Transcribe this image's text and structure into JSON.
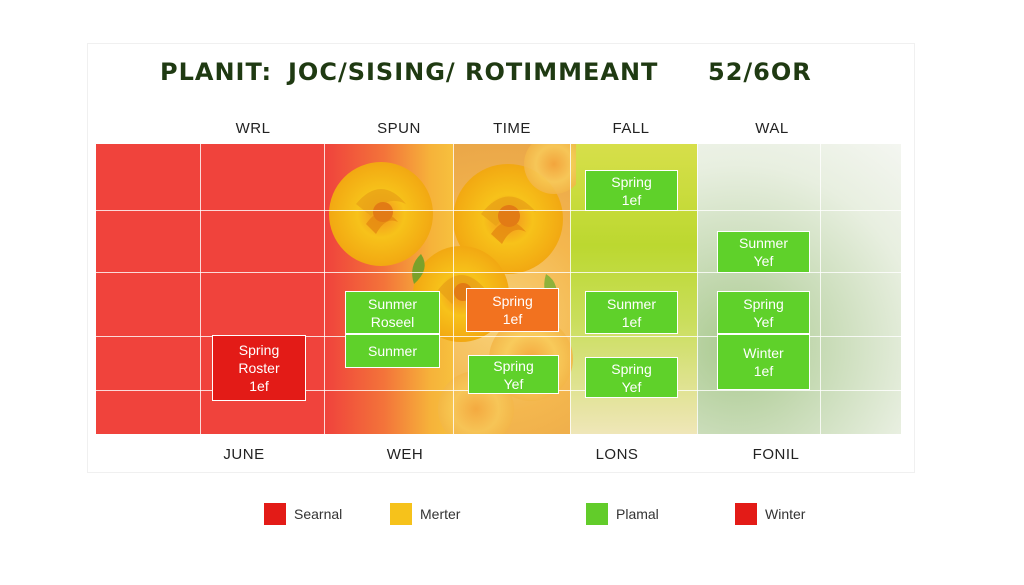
{
  "title": {
    "left": "PLANIT:",
    "middle": "JOC/SISING/ ROTIMMEANT",
    "right": "52/6OR"
  },
  "chart_data": {
    "type": "table",
    "columns_top": [
      "WRL",
      "SPUN",
      "TIME",
      "FALL",
      "WAL"
    ],
    "columns_bottom": [
      "JUNE",
      "WEH",
      "LONS",
      "FONIL"
    ],
    "cells": [
      {
        "lines": [
          "Spring",
          "1ef"
        ],
        "color": "#5fd12a"
      },
      {
        "lines": [
          "Sunmer",
          "Yef"
        ],
        "color": "#5fd12a"
      },
      {
        "lines": [
          "Sunmer",
          "Roseel"
        ],
        "color": "#5fd12a"
      },
      {
        "lines": [
          "Sunmer"
        ],
        "color": "#5fd12a"
      },
      {
        "lines": [
          "Spring",
          "1ef"
        ],
        "color": "#f2721f"
      },
      {
        "lines": [
          "Sunmer",
          "1ef"
        ],
        "color": "#5fd12a"
      },
      {
        "lines": [
          "Spring",
          "Yef"
        ],
        "color": "#5fd12a"
      },
      {
        "lines": [
          "Spring",
          "Roster",
          "1ef"
        ],
        "color": "#e31b17"
      },
      {
        "lines": [
          "Spring",
          "Yef"
        ],
        "color": "#5fd12a"
      },
      {
        "lines": [
          "Spring",
          "Yef"
        ],
        "color": "#5fd12a"
      },
      {
        "lines": [
          "Winter",
          "1ef"
        ],
        "color": "#5fd12a"
      }
    ],
    "legend": [
      {
        "label": "Searnal",
        "color": "#e31b17"
      },
      {
        "label": "Merter",
        "color": "#f6c21b"
      },
      {
        "label": "Plamal",
        "color": "#62cc2a"
      },
      {
        "label": "Winter",
        "color": "#e31b17"
      }
    ]
  }
}
